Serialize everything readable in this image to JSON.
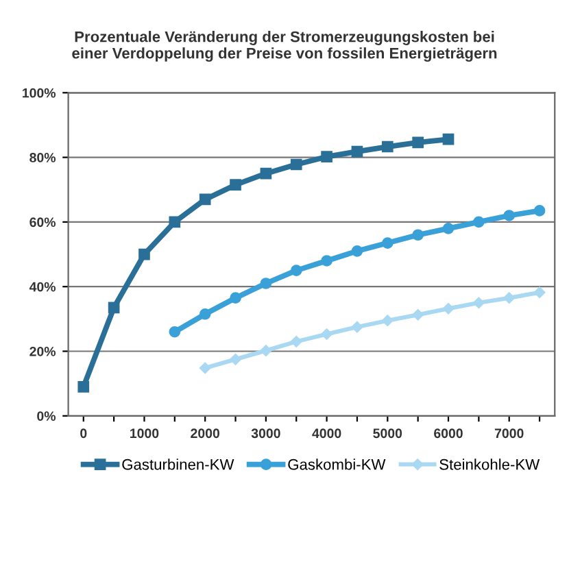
{
  "chart_data": {
    "type": "line",
    "title": "Prozentuale Veränderung der Stromerzeugungskosten bei\neiner Verdoppelung der Preise von fossilen Energieträgern",
    "xlim": [
      -250,
      7750
    ],
    "xticks": [
      0,
      {
        "value": 500,
        "label": null
      },
      1000,
      {
        "value": 1500,
        "label": null
      },
      2000,
      {
        "value": 2500,
        "label": null
      },
      3000,
      {
        "value": 3500,
        "label": null
      },
      4000,
      {
        "value": 4500,
        "label": null
      },
      5000,
      {
        "value": 5500,
        "label": null
      },
      6000,
      {
        "value": 6500,
        "label": null
      },
      7000,
      {
        "value": 7500,
        "label": null
      }
    ],
    "ylim": [
      0,
      100
    ],
    "yticks": [
      {
        "value": 0,
        "label": "0%"
      },
      {
        "value": 20,
        "label": "20%"
      },
      {
        "value": 40,
        "label": "40%"
      },
      {
        "value": 60,
        "label": "60%"
      },
      {
        "value": 80,
        "label": "80%"
      },
      {
        "value": 100,
        "label": "100%"
      }
    ],
    "grid": "y",
    "legend": "bottom",
    "series": [
      {
        "name": "Gasturbinen-KW",
        "color": "#2a6f97",
        "marker": "square",
        "x": [
          0,
          500,
          1000,
          1500,
          2000,
          2500,
          3000,
          3500,
          4000,
          4500,
          5000,
          5500,
          6000
        ],
        "values": [
          9,
          33.5,
          50,
          60,
          67,
          71.5,
          75,
          77.8,
          80.2,
          81.8,
          83.3,
          84.6,
          85.6
        ]
      },
      {
        "name": "Gaskombi-KW",
        "color": "#3aa0d8",
        "marker": "circle",
        "x": [
          1500,
          2000,
          2500,
          3000,
          3500,
          4000,
          4500,
          5000,
          5500,
          6000,
          6500,
          7000,
          7500
        ],
        "values": [
          26,
          31.5,
          36.5,
          41,
          45,
          48,
          51,
          53.5,
          56,
          58,
          60,
          62,
          63.5
        ]
      },
      {
        "name": "Steinkohle-KW",
        "color": "#a9d8f2",
        "marker": "diamond",
        "x": [
          2000,
          2500,
          3000,
          3500,
          4000,
          4500,
          5000,
          5500,
          6000,
          6500,
          7000,
          7500
        ],
        "values": [
          14.8,
          17.5,
          20.2,
          23,
          25.3,
          27.5,
          29.5,
          31.3,
          33.2,
          35,
          36.5,
          38.2
        ]
      }
    ]
  }
}
